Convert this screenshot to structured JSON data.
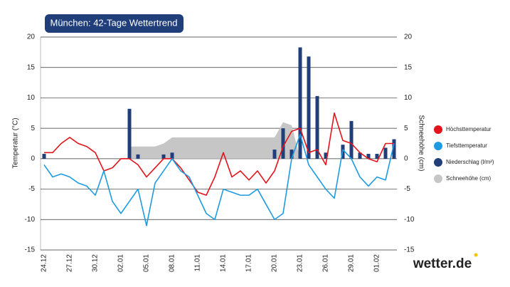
{
  "chart_data": {
    "type": "combo",
    "title": "München: 42-Tage Wettertrend",
    "ylabel": "Temperatur (°C)",
    "y2label": "Schneehöhe (cm)",
    "brand": "wetter.de",
    "categories": [
      "24.12",
      null,
      null,
      "27.12",
      null,
      null,
      "30.12",
      null,
      null,
      "02.01",
      null,
      null,
      "05.01",
      null,
      null,
      "08.01",
      null,
      null,
      "11.01",
      null,
      null,
      "14.01",
      null,
      null,
      "17.01",
      null,
      null,
      "20.01",
      null,
      null,
      "23.01",
      null,
      null,
      "26.01",
      null,
      null,
      "29.01",
      null,
      null,
      "01.02",
      null,
      null
    ],
    "ylim": [
      -15,
      20
    ],
    "yticks": [
      -15,
      -10,
      -5,
      0,
      5,
      10,
      15,
      20
    ],
    "y2lim": [
      -15,
      20
    ],
    "y2ticks": [
      -15,
      -10,
      -5,
      0,
      5,
      10,
      15,
      20
    ],
    "grid": true,
    "series": [
      {
        "name": "Schneehöhe (cm)",
        "type": "area",
        "axis": "y2",
        "color": "#c6c6c6",
        "values": [
          null,
          null,
          null,
          null,
          null,
          null,
          null,
          null,
          null,
          null,
          2,
          2,
          2,
          2,
          2.5,
          3.5,
          3.5,
          3.5,
          3.5,
          3.5,
          3.5,
          3.5,
          3.5,
          3.5,
          3.5,
          3.5,
          3.5,
          3.5,
          6,
          5.5,
          0,
          null,
          null,
          null,
          null,
          null,
          null,
          null,
          null,
          null,
          null,
          null
        ]
      },
      {
        "name": "Niederschlag (l/m²)",
        "type": "bar",
        "color": "#1f3e7a",
        "values": [
          0.8,
          null,
          null,
          null,
          null,
          null,
          null,
          null,
          null,
          null,
          8.2,
          0.7,
          null,
          null,
          0.7,
          1,
          null,
          null,
          null,
          null,
          null,
          null,
          null,
          null,
          null,
          null,
          null,
          1.5,
          5,
          1.5,
          18.3,
          16.8,
          10.3,
          1,
          null,
          2.3,
          6.2,
          1,
          0.8,
          0.8,
          1.8,
          3.2
        ]
      },
      {
        "name": "Höchsttemperatur",
        "type": "line",
        "color": "#e3141b",
        "values": [
          1,
          1,
          2.5,
          3.5,
          2.5,
          2,
          1,
          -2,
          -1.5,
          0,
          0,
          -1,
          -3,
          -1.5,
          0,
          0,
          -1.5,
          -3.5,
          -5.5,
          -6,
          -3,
          1,
          -3,
          -2,
          -3.5,
          -2,
          -4,
          -2,
          2,
          4.5,
          5,
          1,
          1.5,
          -1,
          7.5,
          3,
          2.5,
          1,
          0,
          -0.5,
          2.5,
          2.5
        ]
      },
      {
        "name": "Tiefsttemperatur",
        "type": "line",
        "color": "#1e9be0",
        "values": [
          -1,
          -3,
          -2.5,
          -3,
          -4,
          -4.5,
          -6,
          -2,
          -7,
          -9,
          -7,
          -5,
          -11,
          -4,
          -2,
          0,
          -2,
          -3,
          -6,
          -9,
          -10,
          -5,
          -5.5,
          -6,
          -6,
          -5,
          -7.5,
          -10,
          -9,
          0,
          4,
          -1,
          -3,
          -5,
          -6.5,
          1.5,
          0,
          -3,
          -4.5,
          -3,
          -3.5,
          2.5
        ]
      }
    ]
  }
}
